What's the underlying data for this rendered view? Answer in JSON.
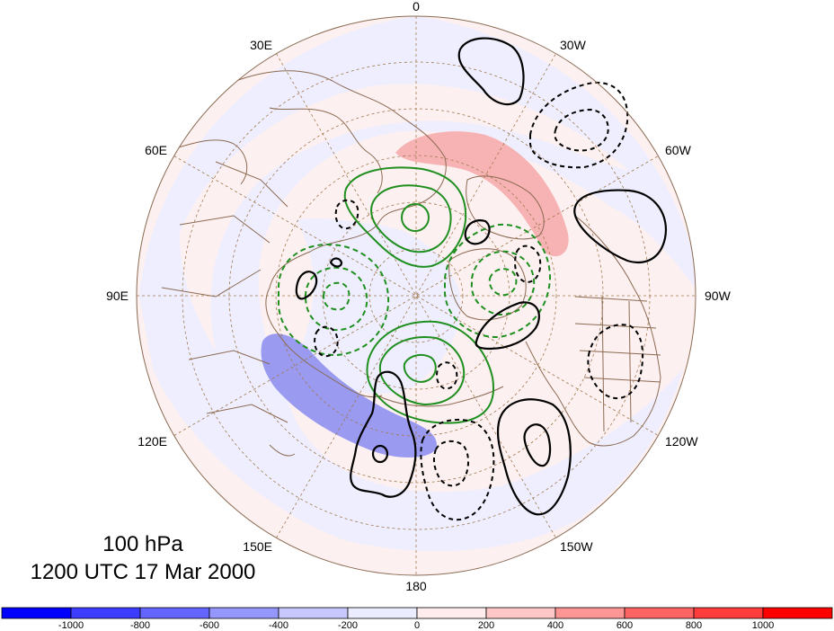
{
  "title": {
    "level": "100 hPa",
    "time": "1200 UTC 17 Mar 2000"
  },
  "longitude_labels": {
    "lon_0": "0",
    "lon_30e": "30E",
    "lon_60e": "60E",
    "lon_90e": "90E",
    "lon_120e": "120E",
    "lon_150e": "150E",
    "lon_180": "180",
    "lon_150w": "150W",
    "lon_120w": "120W",
    "lon_90w": "90W",
    "lon_60w": "60W",
    "lon_30w": "30W"
  },
  "colorbar": {
    "ticks": [
      "-1000",
      "-800",
      "-600",
      "-400",
      "-200",
      "0",
      "200",
      "400",
      "600",
      "800",
      "1000"
    ],
    "colors": [
      "#0000ff",
      "#3c3cff",
      "#6464ff",
      "#9696ff",
      "#c8c8ff",
      "#ececff",
      "#ffecec",
      "#ffc8c8",
      "#ff9696",
      "#ff6464",
      "#ff3c3c",
      "#ff0000"
    ]
  },
  "colors": {
    "land_outline": "#8a6a52",
    "grid": "#a07a50",
    "green_contour": "#1f8f1f",
    "black_contour": "#000000",
    "positive_fill": "#f7b3b3",
    "negative_fill": "#9a9af0",
    "weak_positive": "#fdf0f0",
    "weak_negative": "#eeeefe"
  }
}
